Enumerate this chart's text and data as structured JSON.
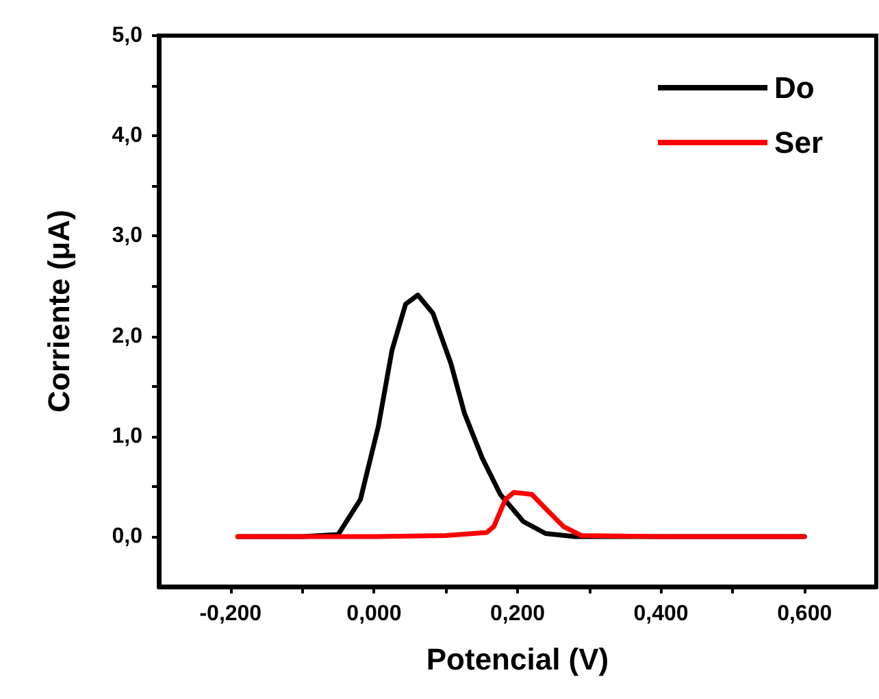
{
  "chart_data": {
    "type": "line",
    "xlabel": "Potencial (V)",
    "ylabel": "Corriente (μA)",
    "xlim": [
      -0.3,
      0.7
    ],
    "ylim": [
      -0.5,
      5
    ],
    "xticks": [
      {
        "value": -0.2,
        "label": "-0,200"
      },
      {
        "value": -0.1,
        "label": null
      },
      {
        "value": 0,
        "label": "0,000"
      },
      {
        "value": 0.1,
        "label": null
      },
      {
        "value": 0.2,
        "label": "0,200"
      },
      {
        "value": 0.3,
        "label": null
      },
      {
        "value": 0.4,
        "label": "0,400"
      },
      {
        "value": 0.5,
        "label": null
      },
      {
        "value": 0.6,
        "label": "0,600"
      }
    ],
    "yticks": [
      {
        "value": 0,
        "label": "0,0"
      },
      {
        "value": 0.5,
        "label": null
      },
      {
        "value": 1,
        "label": "1,0"
      },
      {
        "value": 1.5,
        "label": null
      },
      {
        "value": 2,
        "label": "2,0"
      },
      {
        "value": 2.5,
        "label": null
      },
      {
        "value": 3,
        "label": "3,0"
      },
      {
        "value": 3.5,
        "label": null
      },
      {
        "value": 4,
        "label": "4,0"
      },
      {
        "value": 4.5,
        "label": null
      },
      {
        "value": 5,
        "label": "5,0"
      }
    ],
    "grid": false,
    "legend": "top right",
    "marker": "none",
    "line_style": "solid",
    "series": [
      {
        "name": "Do",
        "color": "#000000",
        "x": [
          -0.19,
          -0.1,
          -0.05,
          -0.019,
          0.006,
          0.025,
          0.044,
          0.061,
          0.082,
          0.107,
          0.126,
          0.151,
          0.176,
          0.208,
          0.239,
          0.28,
          0.4,
          0.6
        ],
        "values": [
          0,
          0,
          0.02,
          0.37,
          1.1,
          1.86,
          2.32,
          2.41,
          2.23,
          1.73,
          1.23,
          0.78,
          0.42,
          0.15,
          0.03,
          0,
          0,
          0
        ]
      },
      {
        "name": "Ser",
        "color": "#ff0000",
        "x": [
          -0.19,
          -0.1,
          0,
          0.1,
          0.157,
          0.167,
          0.183,
          0.195,
          0.22,
          0.239,
          0.264,
          0.289,
          0.4,
          0.6
        ],
        "values": [
          0,
          0,
          0,
          0.01,
          0.04,
          0.1,
          0.37,
          0.44,
          0.42,
          0.28,
          0.1,
          0.01,
          0,
          0
        ]
      }
    ]
  }
}
